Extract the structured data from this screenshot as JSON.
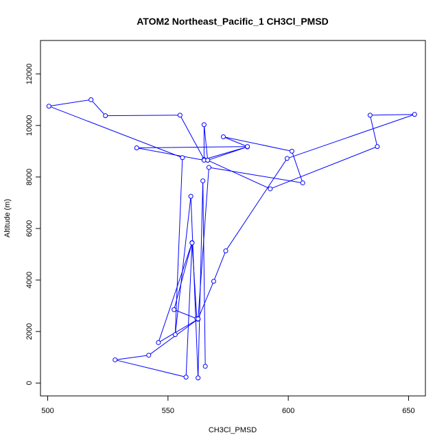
{
  "chart_data": {
    "type": "scatter",
    "title": "ATOM2 Northeast_Pacific_1 CH3Cl_PMSD",
    "xlabel": "CH3Cl_PMSD",
    "ylabel": "Altitude (m)",
    "xlim": [
      497,
      657
    ],
    "ylim": [
      -500,
      13300
    ],
    "x_ticks": [
      500,
      550,
      600,
      650
    ],
    "y_ticks": [
      0,
      2000,
      4000,
      6000,
      8000,
      10000,
      12000
    ],
    "grid": false,
    "legend": "none",
    "connected": true,
    "series": [
      {
        "color": "#0000ff",
        "points": [
          {
            "x": 565.5,
            "y": 650
          },
          {
            "x": 564.5,
            "y": 7850
          },
          {
            "x": 562.5,
            "y": 200
          },
          {
            "x": 559.5,
            "y": 7250
          },
          {
            "x": 553,
            "y": 1880
          },
          {
            "x": 556,
            "y": 8750
          },
          {
            "x": 500.5,
            "y": 10750
          },
          {
            "x": 518,
            "y": 11000
          },
          {
            "x": 524,
            "y": 10380
          },
          {
            "x": 555,
            "y": 10400
          },
          {
            "x": 565,
            "y": 8680
          },
          {
            "x": 583,
            "y": 9170
          },
          {
            "x": 566.5,
            "y": 8650
          },
          {
            "x": 565,
            "y": 10030
          },
          {
            "x": 565,
            "y": 8650
          },
          {
            "x": 537,
            "y": 9130
          },
          {
            "x": 583,
            "y": 9180
          },
          {
            "x": 573,
            "y": 9560
          },
          {
            "x": 601.5,
            "y": 9000
          },
          {
            "x": 606,
            "y": 7770
          },
          {
            "x": 567,
            "y": 8370
          },
          {
            "x": 562.5,
            "y": 2480
          },
          {
            "x": 546,
            "y": 1570
          },
          {
            "x": 560,
            "y": 5450
          },
          {
            "x": 552.5,
            "y": 2850
          },
          {
            "x": 562.5,
            "y": 2480
          },
          {
            "x": 542,
            "y": 1080
          },
          {
            "x": 528,
            "y": 900
          },
          {
            "x": 557.5,
            "y": 230
          },
          {
            "x": 560,
            "y": 5440
          },
          {
            "x": 562,
            "y": 2500
          },
          {
            "x": 562.5,
            "y": 2490
          },
          {
            "x": 569,
            "y": 3950
          },
          {
            "x": 574,
            "y": 5130
          },
          {
            "x": 599.5,
            "y": 8720
          },
          {
            "x": 652.5,
            "y": 10430
          },
          {
            "x": 634,
            "y": 10400
          },
          {
            "x": 637,
            "y": 9180
          },
          {
            "x": 592.5,
            "y": 7540
          },
          {
            "x": 566.5,
            "y": 8650
          }
        ]
      }
    ]
  }
}
